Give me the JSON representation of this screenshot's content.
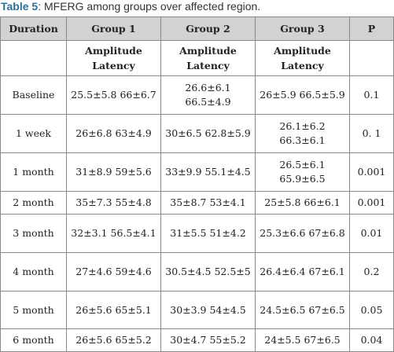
{
  "caption": {
    "label": "Table 5",
    "text": ": MFERG among groups over affected region."
  },
  "table": {
    "headers": [
      "Duration",
      "Group 1",
      "Group 2",
      "Group 3",
      "P"
    ],
    "subheader": [
      "",
      "Amplitude Latency",
      "Amplitude Latency",
      "Amplitude Latency",
      ""
    ],
    "rows": [
      {
        "duration": "Baseline",
        "g1": "25.5±5.8 66±6.7",
        "g2": "26.6±6.1 66.5±4.9",
        "g3": "26±5.9 66.5±5.9",
        "p": "0.1"
      },
      {
        "duration": "1 week",
        "g1": "26±6.8 63±4.9",
        "g2": "30±6.5 62.8±5.9",
        "g3": "26.1±6.2 66.3±6.1",
        "p": "0. 1"
      },
      {
        "duration": "1 month",
        "g1": "31±8.9 59±5.6",
        "g2": "33±9.9 55.1±4.5",
        "g3": "26.5±6.1 65.9±6.5",
        "p": "0.001"
      },
      {
        "duration": "2 month",
        "g1": "35±7.3 55±4.8",
        "g2": "35±8.7 53±4.1",
        "g3": "25±5.8 66±6.1",
        "p": "0.001"
      },
      {
        "duration": "3 month",
        "g1": "32±3.1 56.5±4.1",
        "g2": "31±5.5 51±4.2",
        "g3": "25.3±6.6 67±6.8",
        "p": "0.01"
      },
      {
        "duration": "4 month",
        "g1": "27±4.6 59±4.6",
        "g2": "30.5±4.5 52.5±5",
        "g3": "26.4±6.4 67±6.1",
        "p": "0.2"
      },
      {
        "duration": "5 month",
        "g1": "26±5.6 65±5.1",
        "g2": "30±3.9 54±4.5",
        "g3": "24.5±6.5 67±6.5",
        "p": "0.05"
      },
      {
        "duration": "6 month",
        "g1": "26±5.6 65±5.2",
        "g2": "30±4.7 55±5.2",
        "g3": "24±5.5 67±6.5",
        "p": "0.04"
      }
    ]
  },
  "colors": {
    "caption_label": "#2d6f97",
    "header_bg": "#d2d2d2",
    "border": "#888888"
  }
}
